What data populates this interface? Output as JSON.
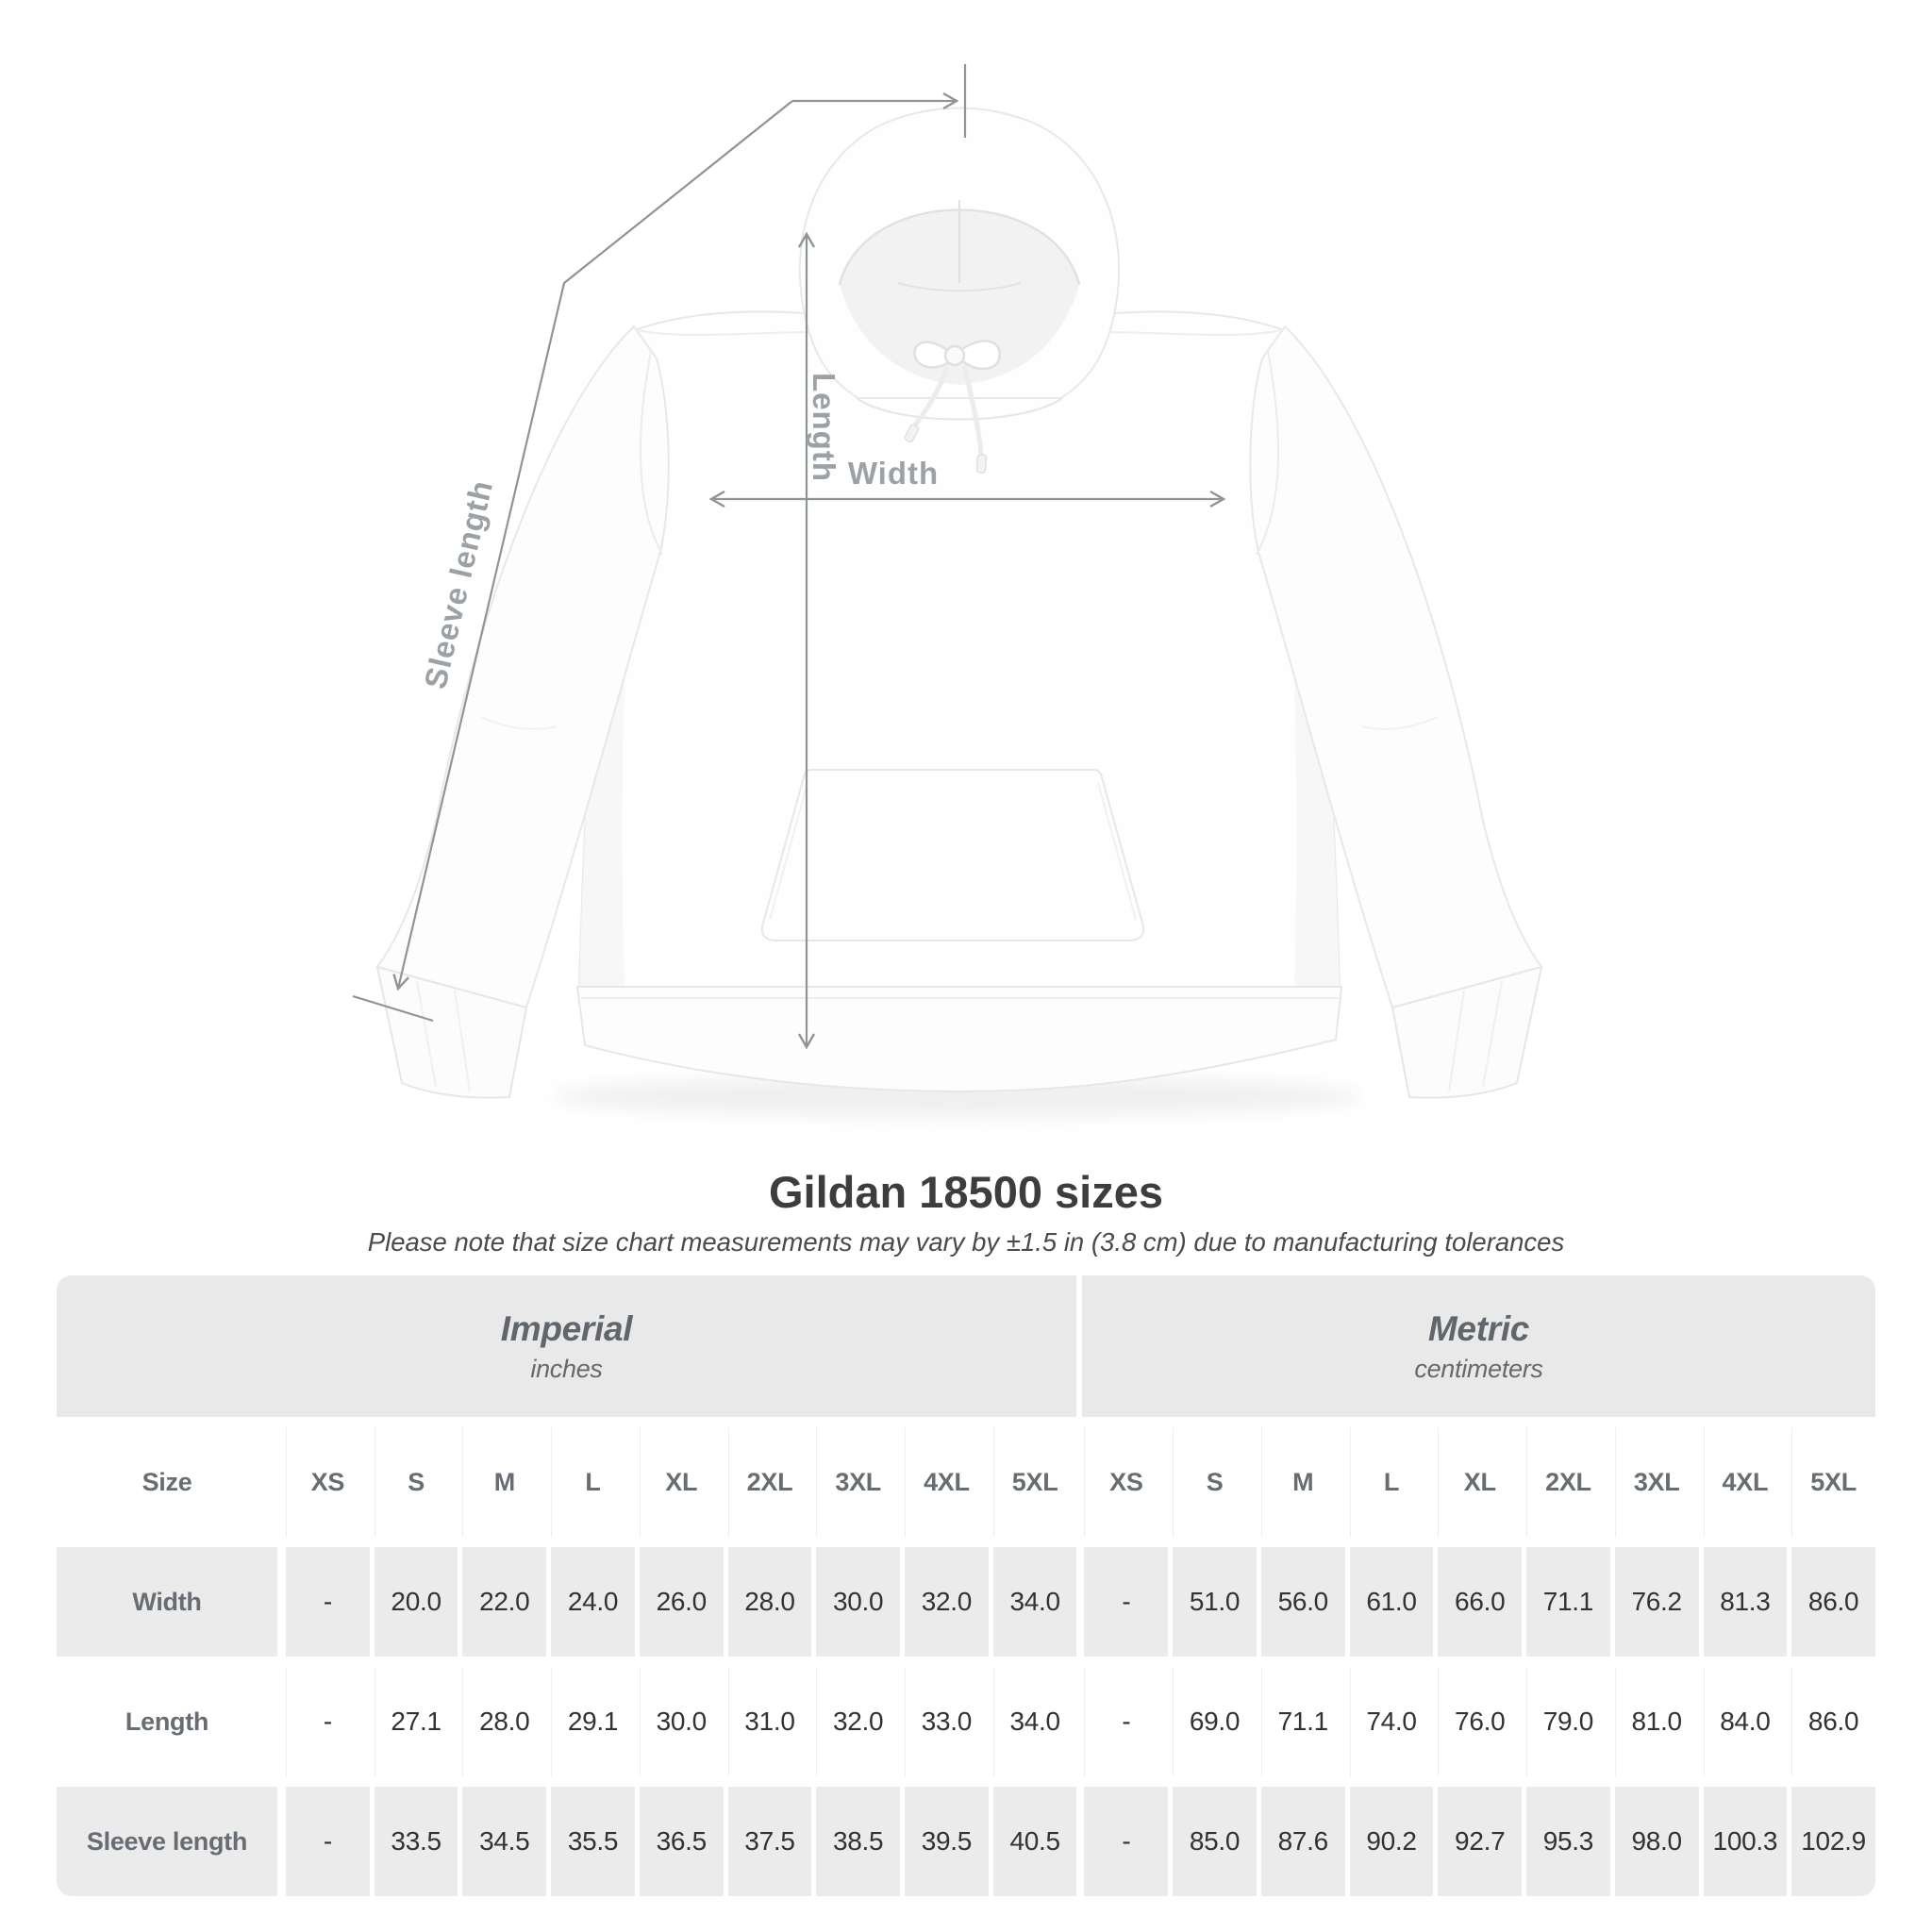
{
  "page": {
    "title": "Gildan 18500 sizes",
    "subtitle": "Please note that size chart measurements may vary by ±1.5 in (3.8 cm) due to manufacturing tolerances"
  },
  "diagram": {
    "labels": {
      "length": "Length",
      "width": "Width",
      "sleeve": "Sleeve length"
    },
    "line_color": "#8f9499",
    "label_color": "#9ca1a6"
  },
  "table": {
    "size_header": "Size",
    "groups": [
      {
        "label": "Imperial",
        "sublabel": "inches"
      },
      {
        "label": "Metric",
        "sublabel": "centimeters"
      }
    ],
    "sizes": [
      "XS",
      "S",
      "M",
      "L",
      "XL",
      "2XL",
      "3XL",
      "4XL",
      "5XL"
    ],
    "rows": [
      {
        "label": "Width",
        "imperial": [
          "-",
          "20.0",
          "22.0",
          "24.0",
          "26.0",
          "28.0",
          "30.0",
          "32.0",
          "34.0"
        ],
        "metric": [
          "-",
          "51.0",
          "56.0",
          "61.0",
          "66.0",
          "71.1",
          "76.2",
          "81.3",
          "86.0"
        ]
      },
      {
        "label": "Length",
        "imperial": [
          "-",
          "27.1",
          "28.0",
          "29.1",
          "30.0",
          "31.0",
          "32.0",
          "33.0",
          "34.0"
        ],
        "metric": [
          "-",
          "69.0",
          "71.1",
          "74.0",
          "76.0",
          "79.0",
          "81.0",
          "84.0",
          "86.0"
        ]
      },
      {
        "label": "Sleeve length",
        "imperial": [
          "-",
          "33.5",
          "34.5",
          "35.5",
          "36.5",
          "37.5",
          "38.5",
          "39.5",
          "40.5"
        ],
        "metric": [
          "-",
          "85.0",
          "87.6",
          "90.2",
          "92.7",
          "95.3",
          "98.0",
          "100.3",
          "102.9"
        ]
      }
    ],
    "colors": {
      "band_bg": "#e9e9e9",
      "gray_row_bg": "#ebebeb",
      "header_text": "#676d72",
      "value_text": "#303234"
    }
  },
  "chart_data": {
    "type": "table",
    "title": "Gildan 18500 sizes",
    "note": "Please note that size chart measurements may vary by ±1.5 in (3.8 cm) due to manufacturing tolerances",
    "column_groups": [
      "Imperial (inches)",
      "Metric (centimeters)"
    ],
    "columns": [
      "Size",
      "XS",
      "S",
      "M",
      "L",
      "XL",
      "2XL",
      "3XL",
      "4XL",
      "5XL",
      "XS",
      "S",
      "M",
      "L",
      "XL",
      "2XL",
      "3XL",
      "4XL",
      "5XL"
    ],
    "rows": [
      [
        "Width",
        "-",
        20.0,
        22.0,
        24.0,
        26.0,
        28.0,
        30.0,
        32.0,
        34.0,
        "-",
        51.0,
        56.0,
        61.0,
        66.0,
        71.1,
        76.2,
        81.3,
        86.0
      ],
      [
        "Length",
        "-",
        27.1,
        28.0,
        29.1,
        30.0,
        31.0,
        32.0,
        33.0,
        34.0,
        "-",
        69.0,
        71.1,
        74.0,
        76.0,
        79.0,
        81.0,
        84.0,
        86.0
      ],
      [
        "Sleeve length",
        "-",
        33.5,
        34.5,
        35.5,
        36.5,
        37.5,
        38.5,
        39.5,
        40.5,
        "-",
        85.0,
        87.6,
        90.2,
        92.7,
        95.3,
        98.0,
        100.3,
        102.9
      ]
    ]
  }
}
